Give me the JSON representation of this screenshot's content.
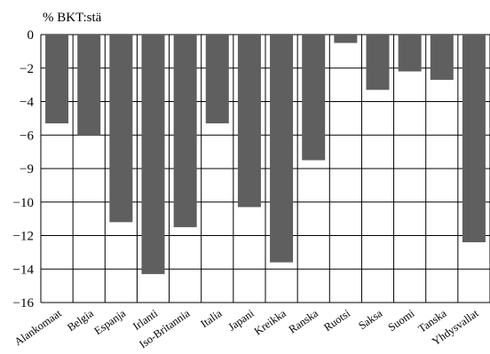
{
  "chart_data": {
    "type": "bar",
    "title": "",
    "ylabel": "% BKT:stä",
    "xlabel": "",
    "ylim": [
      -16,
      0
    ],
    "y_ticks": [
      0,
      -2,
      -4,
      -6,
      -9,
      -10,
      -12,
      -14,
      -16
    ],
    "grid": true,
    "categories": [
      "Alankomaat",
      "Belgia",
      "Espanja",
      "Irlanti",
      "Iso-Britannia",
      "Italia",
      "Japani",
      "Kreikka",
      "Ranska",
      "Ruotsi",
      "Saksa",
      "Suomi",
      "Tanska",
      "Yhdysvallat"
    ],
    "values": [
      -5.3,
      -6.0,
      -11.2,
      -14.3,
      -11.5,
      -5.3,
      -10.3,
      -13.6,
      -7.5,
      -0.5,
      -3.3,
      -2.2,
      -2.7,
      -12.4
    ],
    "bar_color": "#5f5f5f"
  }
}
